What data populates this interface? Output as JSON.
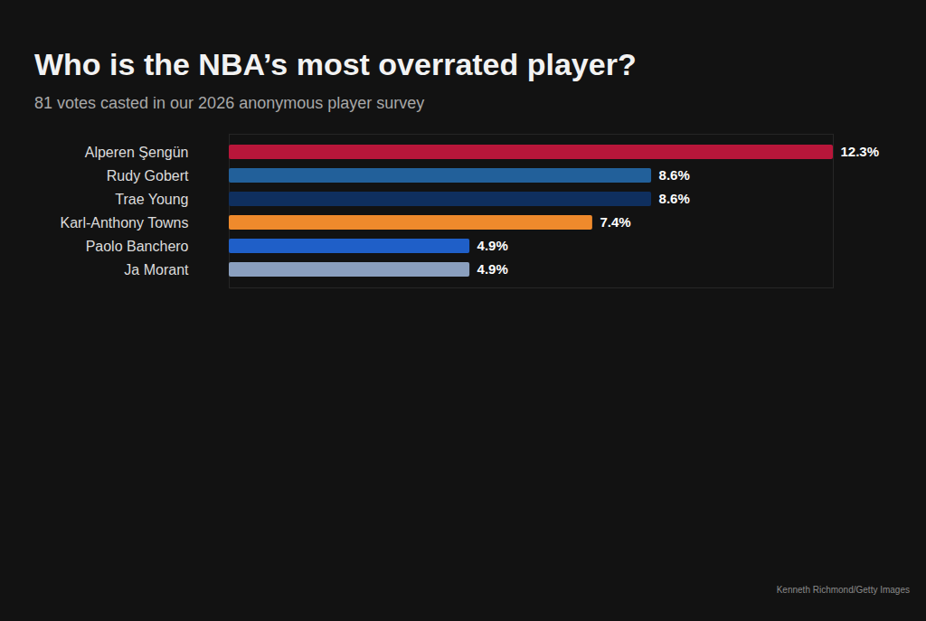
{
  "chart_data": {
    "type": "bar",
    "orientation": "horizontal",
    "title": "Who is the NBA’s most overrated player?",
    "subtitle": "81 votes casted in our 2026 anonymous player survey",
    "caption": "Kenneth Richmond/Getty Images",
    "categories": [
      "Alperen Şengün",
      "Rudy Gobert",
      "Trae Young",
      "Karl-Anthony Towns",
      "Paolo Banchero",
      "Ja Morant"
    ],
    "values": [
      12.3,
      8.6,
      8.6,
      7.4,
      4.9,
      4.9
    ],
    "value_labels": [
      "12.3%",
      "8.6%",
      "8.6%",
      "7.4%",
      "4.9%",
      "4.9%"
    ],
    "colors": [
      "#b8163a",
      "#22609a",
      "#0f2f5e",
      "#ef8a2c",
      "#1f5fc8",
      "#8a9fbe"
    ],
    "xlim": [
      0,
      12.3
    ],
    "data_labels": true,
    "tick_labels": "y",
    "grid": false
  }
}
